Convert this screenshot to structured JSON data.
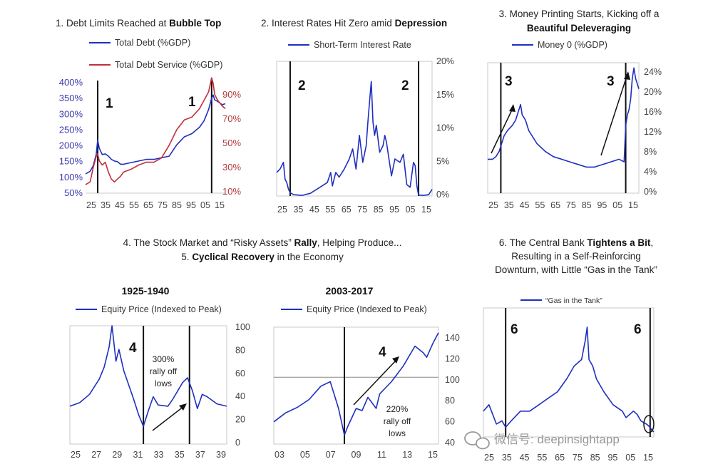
{
  "colors": {
    "blue": "#1f2fc0",
    "red": "#c0303a",
    "frame": "#c8c8c8",
    "line": "#111111"
  },
  "watermark": {
    "icon": "wechat-icon",
    "text": "微信号: deepinsightapp"
  },
  "panels": [
    {
      "title_parts": [
        {
          "text": "1. Debt Limits Reached at ",
          "bold": false
        },
        {
          "text": "Bubble Top",
          "bold": true
        }
      ],
      "legend": [
        "Total Debt (%GDP)",
        "Total Debt Service (%GDP)"
      ],
      "markers": [
        "1",
        "1"
      ]
    },
    {
      "title_parts": [
        {
          "text": "2. Interest Rates Hit Zero amid ",
          "bold": false
        },
        {
          "text": "Depression",
          "bold": true
        }
      ],
      "legend": [
        "Short-Term Interest Rate"
      ],
      "markers": [
        "2",
        "2"
      ]
    },
    {
      "title_lines": [
        [
          {
            "text": "3. Money Printing Starts, Kicking off a",
            "bold": false
          }
        ],
        [
          {
            "text": "Beautiful Deleveraging",
            "bold": true
          }
        ]
      ],
      "legend": [
        "Money 0 (%GDP)"
      ],
      "markers": [
        "3",
        "3"
      ]
    },
    {
      "title_lines": [
        [
          {
            "text": "4. The Stock Market and “Risky Assets” ",
            "bold": false
          },
          {
            "text": "Rally",
            "bold": true
          },
          {
            "text": ", Helping Produce...",
            "bold": false
          }
        ],
        [
          {
            "text": "5. ",
            "bold": false
          },
          {
            "text": "Cyclical Recovery",
            "bold": true
          },
          {
            "text": " in the Economy",
            "bold": false
          }
        ]
      ]
    },
    {
      "subtitle": "1925-1940",
      "legend": [
        "Equity Price (Indexed to Peak)"
      ],
      "markers": [
        "4"
      ],
      "annotation": [
        "300%",
        "rally off",
        "lows"
      ]
    },
    {
      "subtitle": "2003-2017",
      "legend": [
        "Equity Price (Indexed to Peak)"
      ],
      "markers": [
        "4"
      ],
      "annotation": [
        "220%",
        "rally off",
        "lows"
      ]
    },
    {
      "title_lines": [
        [
          {
            "text": "6. The Central Bank ",
            "bold": false
          },
          {
            "text": "Tightens a Bit",
            "bold": true
          },
          {
            "text": ",",
            "bold": false
          }
        ],
        [
          {
            "text": "Resulting in a Self-Reinforcing",
            "bold": false
          }
        ],
        [
          {
            "text": "Downturn, with Little “Gas in the Tank”",
            "bold": false
          }
        ]
      ],
      "legend": [
        "“Gas in the Tank”"
      ],
      "markers": [
        "6",
        "6"
      ]
    }
  ],
  "chart_data": [
    {
      "type": "line",
      "title": "1. Debt Limits Reached at Bubble Top",
      "x_ticks": [
        "25",
        "35",
        "45",
        "55",
        "65",
        "75",
        "85",
        "95",
        "05",
        "15"
      ],
      "xlim": [
        1925,
        2017
      ],
      "y_left_ticks": [
        "400%",
        "350%",
        "300%",
        "250%",
        "200%",
        "150%",
        "100%",
        "50%"
      ],
      "ylim_left": [
        50,
        400
      ],
      "y_right_ticks": [
        "90%",
        "70%",
        "50%",
        "30%",
        "10%"
      ],
      "ylim_right": [
        10,
        90
      ],
      "vlines": [
        1933,
        2008
      ],
      "series": [
        {
          "name": "Total Debt (%GDP)",
          "axis": "left",
          "x": [
            1925,
            1928,
            1930,
            1932,
            1933,
            1934,
            1936,
            1938,
            1940,
            1942,
            1944,
            1946,
            1948,
            1950,
            1955,
            1960,
            1965,
            1970,
            1975,
            1980,
            1985,
            1990,
            1995,
            2000,
            2003,
            2006,
            2008,
            2009,
            2010,
            2012,
            2015,
            2017
          ],
          "y": [
            110,
            118,
            135,
            170,
            215,
            190,
            170,
            172,
            165,
            155,
            150,
            148,
            140,
            140,
            145,
            150,
            155,
            155,
            160,
            165,
            200,
            225,
            235,
            255,
            275,
            310,
            345,
            355,
            340,
            335,
            325,
            328
          ]
        },
        {
          "name": "Total Debt Service (%GDP)",
          "axis": "right",
          "x": [
            1925,
            1928,
            1930,
            1932,
            1933,
            1934,
            1936,
            1938,
            1940,
            1942,
            1944,
            1946,
            1948,
            1950,
            1955,
            1960,
            1965,
            1970,
            1975,
            1980,
            1985,
            1990,
            1995,
            2000,
            2003,
            2006,
            2008,
            2009,
            2010,
            2012,
            2015,
            2017
          ],
          "y": [
            16,
            18,
            28,
            36,
            38,
            33,
            30,
            32,
            25,
            20,
            18,
            20,
            22,
            25,
            27,
            30,
            32,
            32,
            35,
            44,
            55,
            62,
            64,
            70,
            76,
            82,
            92,
            88,
            80,
            76,
            72,
            70
          ]
        }
      ]
    },
    {
      "type": "line",
      "title": "2. Interest Rates Hit Zero amid Depression",
      "x_ticks": [
        "25",
        "35",
        "45",
        "55",
        "65",
        "75",
        "85",
        "95",
        "05",
        "15"
      ],
      "xlim": [
        1925,
        2017
      ],
      "y_ticks": [
        "20%",
        "15%",
        "10%",
        "5%",
        "0%"
      ],
      "ylim": [
        0,
        20
      ],
      "vlines": [
        1933,
        2009
      ],
      "series": [
        {
          "name": "Short-Term Interest Rate",
          "x": [
            1925,
            1927,
            1929,
            1930,
            1931,
            1932,
            1933,
            1935,
            1940,
            1945,
            1950,
            1955,
            1957,
            1958,
            1960,
            1962,
            1965,
            1968,
            1970,
            1972,
            1974,
            1976,
            1978,
            1979,
            1980,
            1981,
            1982,
            1983,
            1984,
            1986,
            1988,
            1989,
            1990,
            1993,
            1995,
            1998,
            2000,
            2002,
            2004,
            2006,
            2007,
            2008,
            2009,
            2012,
            2015,
            2017
          ],
          "y": [
            3.5,
            4,
            5,
            2.5,
            2,
            1,
            0.5,
            0.2,
            0.1,
            0.4,
            1.2,
            2,
            3.5,
            1.5,
            3.5,
            2.8,
            4,
            5.5,
            7,
            4,
            9,
            5,
            7.5,
            11,
            14,
            17,
            11,
            9,
            10.5,
            6.5,
            7.5,
            9,
            8,
            3,
            5.5,
            5,
            6.2,
            1.7,
            1.3,
            5,
            4.5,
            1.5,
            0.15,
            0.1,
            0.2,
            1
          ]
        }
      ]
    },
    {
      "type": "line",
      "title": "3. Money Printing Starts, Kicking off a Beautiful Deleveraging",
      "x_ticks": [
        "25",
        "35",
        "45",
        "55",
        "65",
        "75",
        "85",
        "95",
        "05",
        "15"
      ],
      "xlim": [
        1925,
        2017
      ],
      "y_ticks": [
        "24%",
        "20%",
        "16%",
        "12%",
        "8%",
        "4%",
        "0%"
      ],
      "ylim": [
        0,
        25
      ],
      "vlines": [
        1933,
        2009
      ],
      "series": [
        {
          "name": "Money 0 (%GDP)",
          "x": [
            1925,
            1928,
            1930,
            1932,
            1933,
            1935,
            1937,
            1940,
            1942,
            1944,
            1945,
            1946,
            1948,
            1950,
            1955,
            1960,
            1965,
            1970,
            1975,
            1980,
            1985,
            1990,
            1995,
            2000,
            2005,
            2008,
            2009,
            2010,
            2011,
            2012,
            2013,
            2014,
            2015,
            2016,
            2017
          ],
          "y": [
            6.5,
            6.5,
            7,
            8,
            9,
            11,
            12,
            13,
            14,
            16,
            17,
            15,
            14,
            12,
            9.5,
            8,
            7,
            6.5,
            6,
            5.5,
            5,
            5,
            5.5,
            6,
            6.5,
            6,
            13,
            15,
            16,
            18,
            22,
            24,
            22,
            21,
            20
          ]
        }
      ]
    },
    {
      "type": "line",
      "title": "1925-1940",
      "x_ticks": [
        "25",
        "27",
        "29",
        "31",
        "33",
        "35",
        "37",
        "39"
      ],
      "xlim": [
        1925,
        1941
      ],
      "y_ticks": [
        "100",
        "80",
        "60",
        "40",
        "20",
        "0"
      ],
      "ylim": [
        0,
        100
      ],
      "vlines": [
        1932.5,
        1937.2
      ],
      "series": [
        {
          "name": "Equity Price (Indexed to Peak)",
          "x": [
            1925,
            1926,
            1927,
            1928,
            1928.5,
            1929,
            1929.3,
            1929.7,
            1930,
            1930.5,
            1931,
            1931.5,
            1932,
            1932.5,
            1933,
            1933.5,
            1934,
            1935,
            1935.5,
            1936,
            1936.5,
            1937,
            1937.5,
            1938,
            1938.5,
            1939,
            1940,
            1941
          ],
          "y": [
            32,
            35,
            42,
            55,
            65,
            82,
            100,
            70,
            80,
            62,
            50,
            38,
            25,
            15,
            28,
            40,
            33,
            32,
            38,
            45,
            52,
            56,
            45,
            30,
            42,
            40,
            34,
            32
          ]
        }
      ],
      "annotations": [
        "300% rally off lows"
      ]
    },
    {
      "type": "line",
      "title": "2003-2017",
      "x_ticks": [
        "03",
        "05",
        "07",
        "09",
        "11",
        "13",
        "15"
      ],
      "xlim": [
        2003,
        2017
      ],
      "y_ticks": [
        "140",
        "120",
        "100",
        "80",
        "60",
        "40"
      ],
      "ylim": [
        40,
        145
      ],
      "hlines": [
        100
      ],
      "vlines": [
        2009
      ],
      "series": [
        {
          "name": "Equity Price (Indexed to Peak)",
          "x": [
            2003,
            2004,
            2005,
            2006,
            2007,
            2007.8,
            2008.5,
            2009,
            2009.3,
            2010,
            2010.5,
            2011,
            2011.7,
            2012,
            2013,
            2014,
            2015,
            2015.7,
            2016,
            2016.5,
            2017
          ],
          "y": [
            60,
            68,
            73,
            80,
            92,
            96,
            72,
            48,
            56,
            72,
            70,
            82,
            72,
            85,
            96,
            110,
            128,
            122,
            118,
            130,
            140
          ]
        }
      ],
      "annotations": [
        "220% rally off lows"
      ]
    },
    {
      "type": "line",
      "title": "6. The Central Bank Tightens a Bit, Resulting in a Self-Reinforcing Downturn, with Little “Gas in the Tank”",
      "x_ticks": [
        "25",
        "35",
        "45",
        "55",
        "65",
        "75",
        "85",
        "95",
        "05",
        "15"
      ],
      "xlim": [
        1925,
        2017
      ],
      "y_ticks": [],
      "ylim": [
        0,
        20
      ],
      "vlines": [
        1937,
        2015
      ],
      "series": [
        {
          "name": "“Gas in the Tank”",
          "x": [
            1925,
            1928,
            1930,
            1932,
            1935,
            1937,
            1940,
            1945,
            1950,
            1955,
            1960,
            1965,
            1970,
            1974,
            1978,
            1980,
            1981,
            1982,
            1984,
            1986,
            1990,
            1995,
            2000,
            2002,
            2006,
            2008,
            2010,
            2013,
            2015,
            2016,
            2017
          ],
          "y": [
            4,
            5,
            3.5,
            2,
            2.5,
            1.5,
            2.5,
            4,
            4,
            5,
            6,
            7,
            9,
            11,
            12,
            15,
            17,
            12,
            11,
            9,
            7,
            5,
            4,
            3,
            4,
            3.5,
            2.5,
            2,
            1.5,
            1,
            0.8
          ]
        }
      ]
    }
  ]
}
